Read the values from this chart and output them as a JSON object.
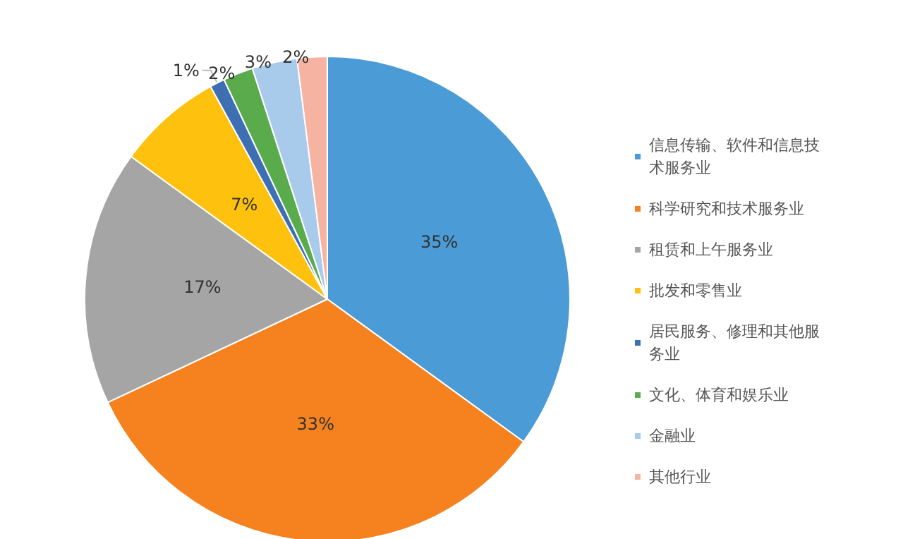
{
  "chart_data": {
    "type": "pie",
    "categories": [
      "信息传输、软件和信息技术服务业",
      "科学研究和技术服务业",
      "租赁和上午服务业",
      "批发和零售业",
      "居民服务、修理和其他服务业",
      "文化、体育和娱乐业",
      "金融业",
      "其他行业"
    ],
    "values": [
      35,
      33,
      17,
      7,
      1,
      2,
      3,
      2
    ],
    "value_labels": [
      "35%",
      "33%",
      "17%",
      "7%",
      "1%",
      "2%",
      "3%",
      "2%"
    ],
    "colors": [
      "#4b9bd6",
      "#f5821f",
      "#a5a5a5",
      "#fdc10e",
      "#3e6fb3",
      "#5aab4b",
      "#a9cbeb",
      "#f7b3a2"
    ],
    "legend": "right"
  }
}
